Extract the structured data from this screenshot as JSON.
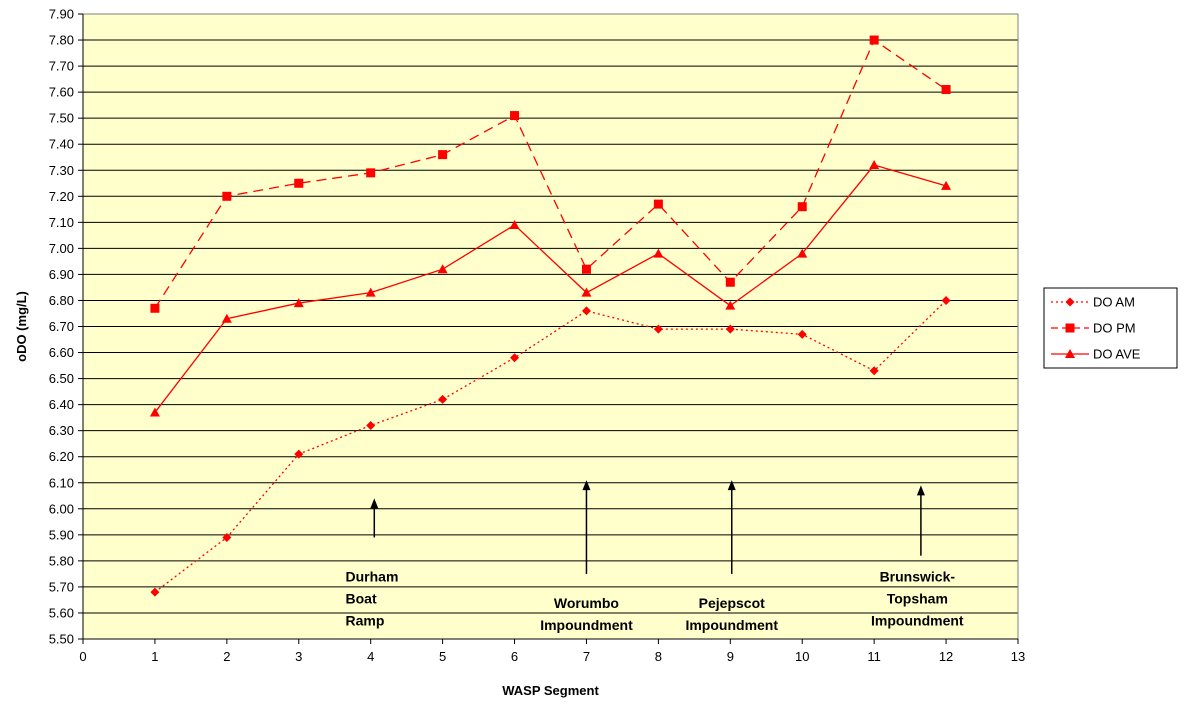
{
  "chart_data": {
    "type": "line",
    "xlabel": "WASP Segment",
    "ylabel": "oDO (mg/L)",
    "xlim": [
      0,
      13
    ],
    "ylim": [
      5.5,
      7.9
    ],
    "x_ticks": [
      "0",
      "1",
      "2",
      "3",
      "4",
      "5",
      "6",
      "7",
      "8",
      "9",
      "10",
      "11",
      "12",
      "13"
    ],
    "y_ticks": [
      "5.50",
      "5.60",
      "5.70",
      "5.80",
      "5.90",
      "6.00",
      "6.10",
      "6.20",
      "6.30",
      "6.40",
      "6.50",
      "6.60",
      "6.70",
      "6.80",
      "6.90",
      "7.00",
      "7.10",
      "7.20",
      "7.30",
      "7.40",
      "7.50",
      "7.60",
      "7.70",
      "7.80",
      "7.90"
    ],
    "grid": "horizontal",
    "legend_position": "right",
    "plot_background": "#FFFFCC",
    "series": [
      {
        "name": "DO AM",
        "marker": "diamond",
        "line": "dotted",
        "color": "#FF0000",
        "x": [
          1,
          2,
          3,
          4,
          5,
          6,
          7,
          8,
          9,
          10,
          11,
          12
        ],
        "values": [
          5.68,
          5.89,
          6.21,
          6.32,
          6.42,
          6.58,
          6.76,
          6.69,
          6.69,
          6.67,
          6.53,
          6.8
        ]
      },
      {
        "name": "DO PM",
        "marker": "square",
        "line": "dashed",
        "color": "#FF0000",
        "x": [
          1,
          2,
          3,
          4,
          5,
          6,
          7,
          8,
          9,
          10,
          11,
          12
        ],
        "values": [
          6.77,
          7.2,
          7.25,
          7.29,
          7.36,
          7.51,
          6.92,
          7.17,
          6.87,
          7.16,
          7.8,
          7.61
        ]
      },
      {
        "name": "DO AVE",
        "marker": "triangle",
        "line": "solid",
        "color": "#FF0000",
        "x": [
          1,
          2,
          3,
          4,
          5,
          6,
          7,
          8,
          9,
          10,
          11,
          12
        ],
        "values": [
          6.37,
          6.73,
          6.79,
          6.83,
          6.92,
          7.09,
          6.83,
          6.98,
          6.78,
          6.98,
          7.32,
          7.24
        ]
      }
    ],
    "annotations": [
      {
        "lines": [
          "Durham",
          "Boat",
          "Ramp"
        ],
        "arrow_x": 4.05,
        "arrow_from": 5.89,
        "arrow_to": 6.04,
        "text_x": 3.65,
        "text_y": 5.72,
        "align": "start"
      },
      {
        "lines": [
          "Worumbo",
          "Impoundment"
        ],
        "arrow_x": 7.0,
        "arrow_from": 5.75,
        "arrow_to": 6.11,
        "text_x": 7.0,
        "text_y": 5.62,
        "align": "middle"
      },
      {
        "lines": [
          "Pejepscot",
          "Impoundment"
        ],
        "arrow_x": 9.02,
        "arrow_from": 5.75,
        "arrow_to": 6.11,
        "text_x": 9.02,
        "text_y": 5.62,
        "align": "middle"
      },
      {
        "lines": [
          "Brunswick-",
          "Topsham",
          "Impoundment"
        ],
        "arrow_x": 11.65,
        "arrow_from": 5.82,
        "arrow_to": 6.09,
        "text_x": 11.6,
        "text_y": 5.72,
        "align": "middle"
      }
    ]
  }
}
